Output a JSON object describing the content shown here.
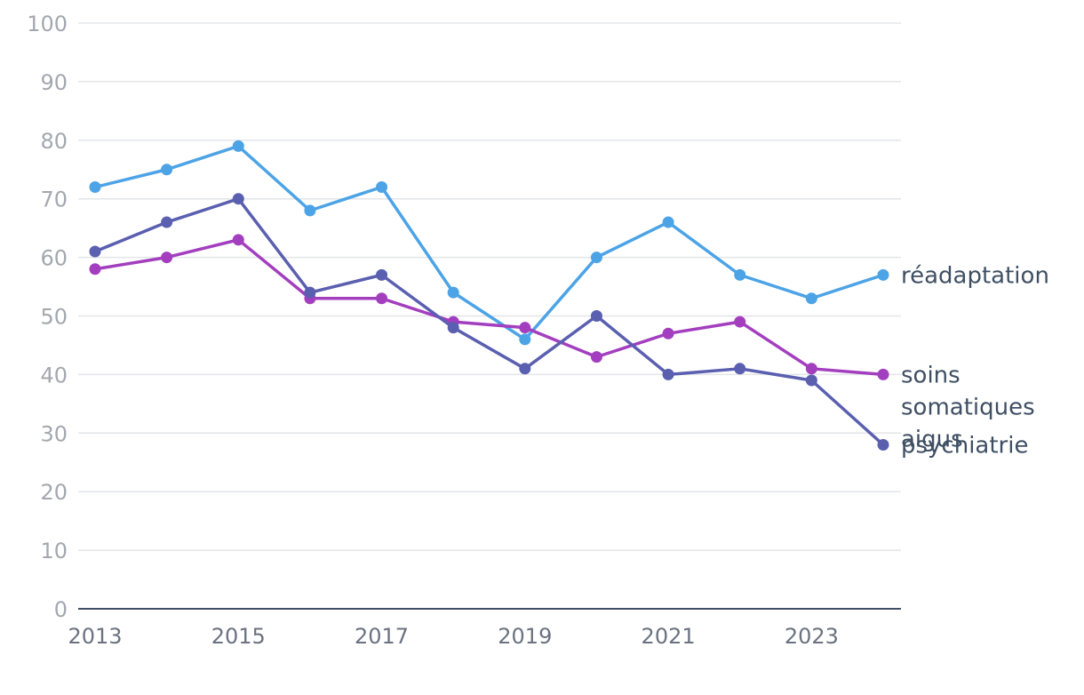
{
  "chart_data": {
    "type": "line",
    "title": "",
    "xlabel": "",
    "ylabel": "",
    "ylim": [
      0,
      100
    ],
    "yticks": [
      0,
      10,
      20,
      30,
      40,
      50,
      60,
      70,
      80,
      90,
      100
    ],
    "x": [
      2013,
      2014,
      2015,
      2016,
      2017,
      2018,
      2019,
      2020,
      2021,
      2022,
      2023,
      2024
    ],
    "xtick_labels": [
      "2013",
      "2015",
      "2017",
      "2019",
      "2021",
      "2023"
    ],
    "grid": true,
    "series": [
      {
        "name": "réadaptation",
        "label_lines": [
          "réadaptation"
        ],
        "color": "#4ca3e6",
        "values": [
          72,
          75,
          79,
          68,
          72,
          54,
          46,
          60,
          66,
          57,
          53,
          57
        ]
      },
      {
        "name": "soins somatiques aigus",
        "label_lines": [
          "soins",
          "somatiques",
          "aigus"
        ],
        "color": "#a33fbf",
        "values": [
          58,
          60,
          63,
          53,
          53,
          49,
          48,
          43,
          47,
          49,
          41,
          40
        ]
      },
      {
        "name": "psychiatrie",
        "label_lines": [
          "psychiatrie"
        ],
        "color": "#5a5fb0",
        "values": [
          61,
          66,
          70,
          54,
          57,
          48,
          41,
          50,
          40,
          41,
          39,
          28
        ]
      }
    ]
  }
}
